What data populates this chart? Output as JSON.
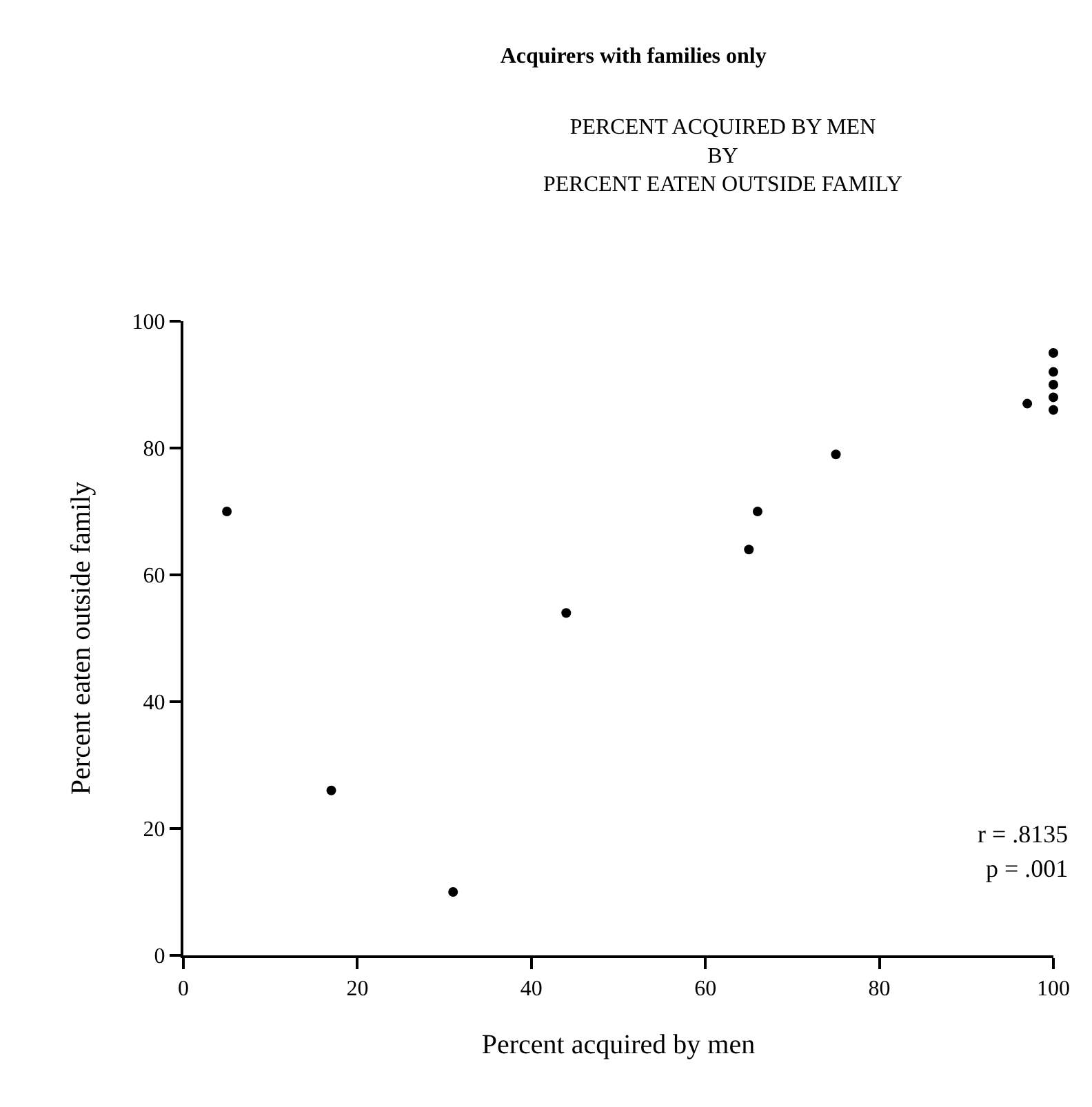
{
  "chart_data": {
    "type": "scatter",
    "title": "Acquirers with families only",
    "subtitle": "PERCENT ACQUIRED BY MEN\nBY\nPERCENT EATEN OUTSIDE FAMILY",
    "xlabel": "Percent acquired by men",
    "ylabel": "Percent eaten outside family",
    "annotations": [
      "r = .8135",
      "p = .001"
    ],
    "series": [
      {
        "color": "#000000",
        "x": [
          5,
          17,
          31,
          44,
          65,
          66,
          75,
          97,
          100,
          100,
          100,
          100,
          100
        ],
        "values": [
          70,
          26,
          10,
          54,
          64,
          70,
          79,
          87,
          95,
          92,
          90,
          88,
          86
        ]
      }
    ],
    "xlim": [
      0,
      100
    ],
    "ylim": [
      0,
      100
    ],
    "xticks": [
      0,
      20,
      40,
      60,
      80,
      100
    ],
    "yticks": [
      0,
      20,
      40,
      60,
      80,
      100
    ],
    "marker": "circle"
  }
}
